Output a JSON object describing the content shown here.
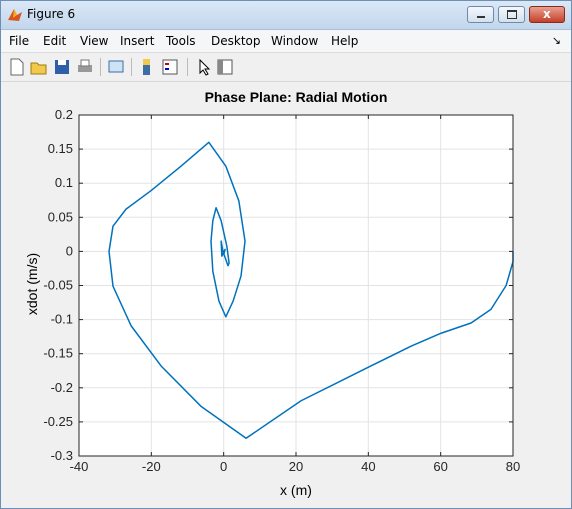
{
  "window": {
    "title": "Figure 6",
    "menu": [
      "File",
      "Edit",
      "View",
      "Insert",
      "Tools",
      "Desktop",
      "Window",
      "Help"
    ]
  },
  "chart_data": {
    "type": "line",
    "title": "Phase Plane: Radial Motion",
    "x_label": "x (m)",
    "y_label": "xdot (m/s)",
    "x": [
      80,
      80,
      78.1,
      73.9,
      68.4,
      60.1,
      51.8,
      40.7,
      21.4,
      6.2,
      -6.3,
      -17.3,
      -25.6,
      -30.6,
      -31.7,
      -30.6,
      -27,
      -20.1,
      -11.8,
      -4.1,
      0.6,
      4.2,
      5.9,
      4.8,
      2.6,
      0.6,
      -1.3,
      -3,
      -3.5,
      -3,
      -2.1,
      -0.7,
      0.9,
      1.5,
      1.2,
      -0.2,
      -0.7,
      -0.5,
      0.4,
      0.1,
      0
    ],
    "values": [
      0,
      -0.015,
      -0.05,
      -0.085,
      -0.105,
      -0.12,
      -0.139,
      -0.168,
      -0.219,
      -0.274,
      -0.227,
      -0.168,
      -0.109,
      -0.051,
      0,
      0.037,
      0.062,
      0.089,
      0.125,
      0.16,
      0.125,
      0.074,
      0.015,
      -0.036,
      -0.073,
      -0.096,
      -0.073,
      -0.029,
      0.015,
      0.045,
      0.064,
      0.045,
      0.007,
      -0.017,
      -0.021,
      0,
      0.015,
      -0.007,
      0.003,
      -0.003,
      0
    ],
    "color": "#0072bd",
    "xlim": [
      -40,
      80
    ],
    "xticks": [
      -40,
      -20,
      0,
      20,
      40,
      60,
      80
    ],
    "ylim": [
      -0.3,
      0.2
    ],
    "yticks": [
      -0.3,
      -0.25,
      -0.2,
      -0.15,
      -0.1,
      -0.05,
      0,
      0.05,
      0.1,
      0.15,
      0.2
    ],
    "grid": true
  }
}
